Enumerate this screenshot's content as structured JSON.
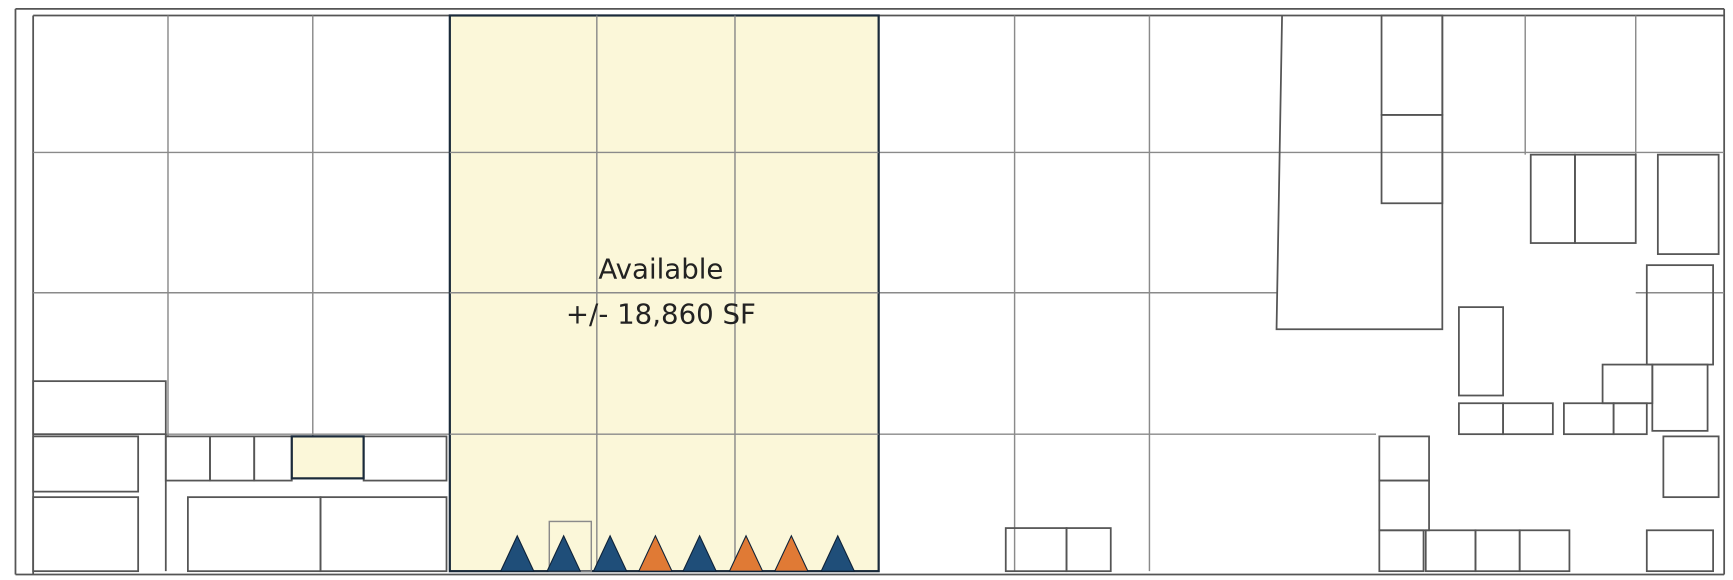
{
  "space": {
    "status": "Available",
    "area": "+/- 18,860 SF"
  }
}
